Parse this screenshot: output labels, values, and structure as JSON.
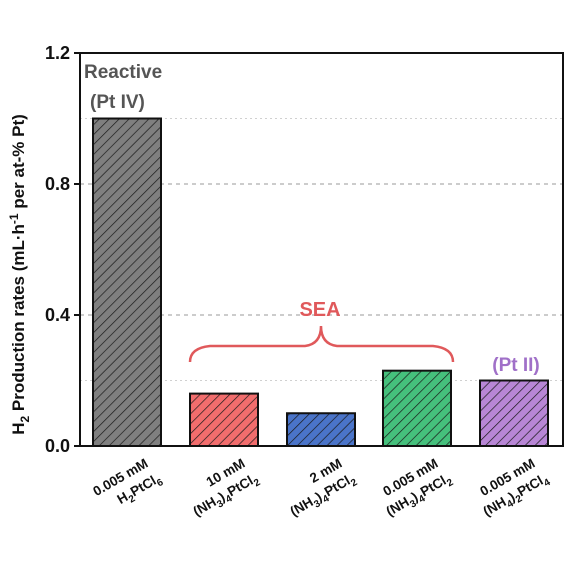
{
  "chart_data": {
    "type": "bar",
    "ylabel_main": "H",
    "ylabel_sub": "2",
    "ylabel_rest_a": " Production rates (mL·h",
    "ylabel_sup": "-1",
    "ylabel_rest_b": " per at-% Pt)",
    "ylim": [
      0,
      1.2
    ],
    "yticks": [
      "0.0",
      "0.4",
      "0.8",
      "1.2"
    ],
    "ytick_values": [
      0.0,
      0.4,
      0.8,
      1.2
    ],
    "grid": "horizontal dashed",
    "categories": [
      {
        "line1": "0.005 mM",
        "line2": [
          [
            "H",
            "n"
          ],
          [
            "2",
            "sub"
          ],
          [
            "PtCl",
            "n"
          ],
          [
            "6",
            "sub"
          ]
        ]
      },
      {
        "line1": "10 mM",
        "line2": [
          [
            "(NH",
            "n"
          ],
          [
            "3",
            "sub"
          ],
          [
            ")",
            "n"
          ],
          [
            "4",
            "sub"
          ],
          [
            "PtCl",
            "n"
          ],
          [
            "2",
            "sub"
          ]
        ]
      },
      {
        "line1": "2 mM",
        "line2": [
          [
            "(NH",
            "n"
          ],
          [
            "3",
            "sub"
          ],
          [
            ")",
            "n"
          ],
          [
            "4",
            "sub"
          ],
          [
            "PtCl",
            "n"
          ],
          [
            "2",
            "sub"
          ]
        ]
      },
      {
        "line1": "0.005 mM",
        "line2": [
          [
            "(NH",
            "n"
          ],
          [
            "3",
            "sub"
          ],
          [
            ")",
            "n"
          ],
          [
            "4",
            "sub"
          ],
          [
            "PtCl",
            "n"
          ],
          [
            "2",
            "sub"
          ]
        ]
      },
      {
        "line1": "0.005 mM",
        "line2": [
          [
            "(NH",
            "n"
          ],
          [
            "4",
            "sub"
          ],
          [
            ")",
            "n"
          ],
          [
            "2",
            "sub"
          ],
          [
            "PtCl",
            "n"
          ],
          [
            "4",
            "sub"
          ]
        ]
      }
    ],
    "values": [
      1.0,
      0.16,
      0.1,
      0.23,
      0.2
    ],
    "colors": [
      "#7f7f7f",
      "#f26d6d",
      "#4a74c9",
      "#45c07c",
      "#b886d6"
    ],
    "annotations": {
      "reactive_line1": "Reactive",
      "reactive_line2": "(Pt IV)",
      "sea": "SEA",
      "pt2": "(Pt II)"
    },
    "annotation_colors": {
      "reactive": "#555555",
      "sea": "#e0595b",
      "pt2": "#a070c8"
    }
  }
}
